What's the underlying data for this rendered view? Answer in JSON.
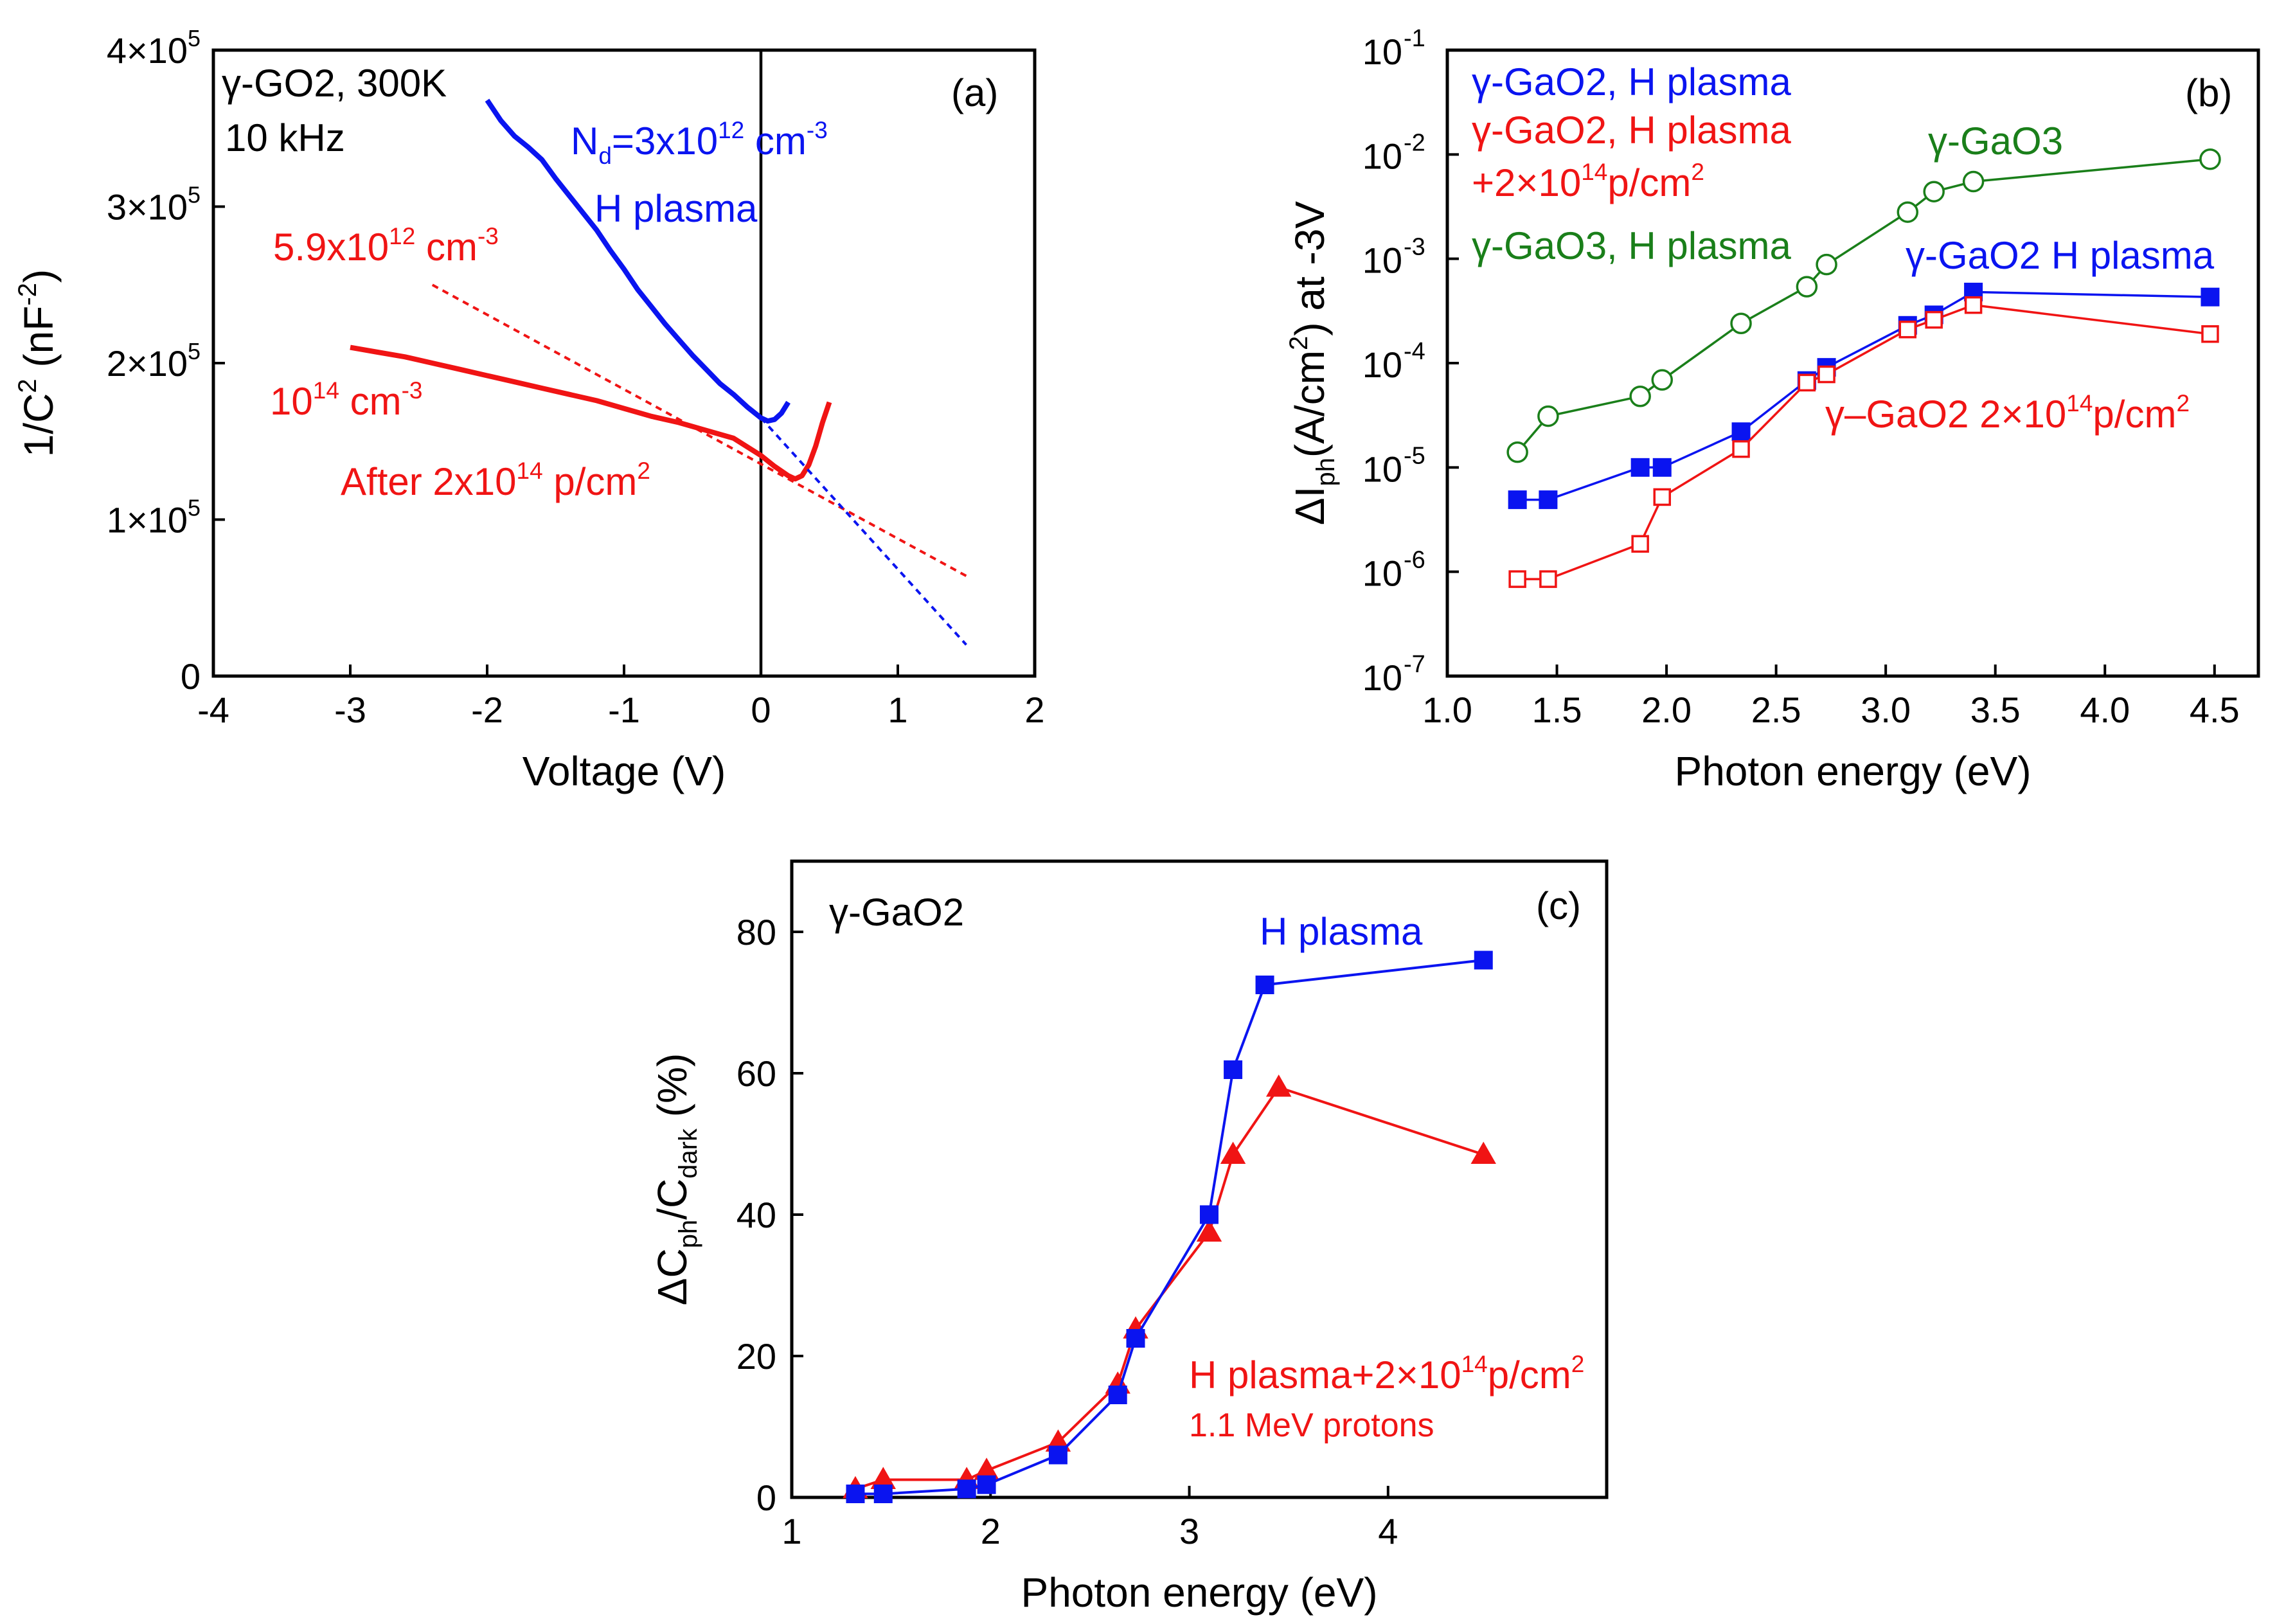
{
  "colors": {
    "blue": "#0a14f0",
    "red": "#f01414",
    "green": "#1a7f1a",
    "black": "#000000"
  },
  "chart_data": [
    {
      "panel": "(a)",
      "type": "line",
      "xlabel": "Voltage (V)",
      "ylabel_parts": [
        "1/C",
        "2",
        " (nF",
        "-2",
        ")"
      ],
      "xlim": [
        -4,
        2
      ],
      "ylim": [
        0,
        400000
      ],
      "xticks": [
        -4,
        -3,
        -2,
        -1,
        0,
        1,
        2
      ],
      "xtick_labels": [
        "-4",
        "-3",
        "-2",
        "-1",
        "0",
        "1",
        "2"
      ],
      "yticks": [
        0,
        100000,
        200000,
        300000,
        400000
      ],
      "ytick_labels": [
        {
          "base": "0",
          "exp": ""
        },
        {
          "base": "1×10",
          "exp": "5"
        },
        {
          "base": "2×10",
          "exp": "5"
        },
        {
          "base": "3×10",
          "exp": "5"
        },
        {
          "base": "4×10",
          "exp": "5"
        }
      ],
      "vline_x": 0,
      "series": [
        {
          "name": "H plasma",
          "color": "blue",
          "style": "solid",
          "x": [
            -2.0,
            -1.9,
            -1.8,
            -1.7,
            -1.6,
            -1.5,
            -1.4,
            -1.3,
            -1.2,
            -1.1,
            -1.0,
            -0.9,
            -0.8,
            -0.7,
            -0.6,
            -0.5,
            -0.4,
            -0.3,
            -0.2,
            -0.1,
            0.0,
            0.05,
            0.1,
            0.15,
            0.2
          ],
          "y": [
            368000,
            355000,
            345000,
            338000,
            330000,
            318000,
            307000,
            296000,
            285000,
            272000,
            260000,
            247000,
            236000,
            225000,
            215000,
            205000,
            196000,
            187000,
            180000,
            172000,
            165000,
            163000,
            164000,
            168000,
            175000
          ]
        },
        {
          "name": "After 2x10^14 p/cm^2",
          "color": "red",
          "style": "solid",
          "x": [
            -3.0,
            -2.8,
            -2.6,
            -2.4,
            -2.2,
            -2.0,
            -1.8,
            -1.6,
            -1.4,
            -1.2,
            -1.0,
            -0.8,
            -0.6,
            -0.4,
            -0.2,
            0.0,
            0.1,
            0.2,
            0.25,
            0.3,
            0.35,
            0.4,
            0.45,
            0.5
          ],
          "y": [
            210000,
            207000,
            204000,
            200000,
            196000,
            192000,
            188000,
            184000,
            180000,
            176000,
            171000,
            166000,
            162000,
            157000,
            152000,
            141000,
            134000,
            128000,
            126000,
            128000,
            135000,
            147000,
            162000,
            175000
          ]
        },
        {
          "name": "fit 5.9x10^12",
          "color": "red",
          "style": "dashed",
          "x": [
            -2.4,
            1.5
          ],
          "y": [
            250000,
            64000
          ]
        },
        {
          "name": "fit 3x10^12",
          "color": "blue",
          "style": "dashed",
          "x": [
            0.0,
            1.5
          ],
          "y": [
            165000,
            20000
          ]
        }
      ],
      "annotations": [
        {
          "id": "a1",
          "base": "γ-GO2, 300K",
          "sup": "",
          "tail": "",
          "color": "black"
        },
        {
          "id": "a2",
          "base": "10 kHz",
          "sup": "",
          "tail": "",
          "color": "black"
        },
        {
          "id": "a3",
          "base": "N",
          "sub": "d",
          "mid": "=3x10",
          "sup": "12",
          "tail": " cm",
          "sup2": "-3",
          "color": "blue"
        },
        {
          "id": "a4",
          "base": "H plasma",
          "color": "blue"
        },
        {
          "id": "a5",
          "base": "5.9x10",
          "sup": "12",
          "tail": " cm",
          "sup2": "-3",
          "color": "red"
        },
        {
          "id": "a6",
          "base": "10",
          "sup": "14",
          "tail": " cm",
          "sup2": "-3",
          "color": "red"
        },
        {
          "id": "a7",
          "base": "After 2x10",
          "sup": "14",
          "tail": " p/cm",
          "sup2": "2",
          "color": "red"
        }
      ]
    },
    {
      "panel": "(b)",
      "type": "scatter",
      "scale_y": "log",
      "xlabel": "Photon energy (eV)",
      "ylabel_parts": [
        "ΔI",
        "ph",
        "(A/cm",
        "2",
        ") at -3V"
      ],
      "xlim": [
        1.0,
        4.7
      ],
      "ylim_log10": [
        -7,
        -1
      ],
      "xticks": [
        1.0,
        1.5,
        2.0,
        2.5,
        3.0,
        3.5,
        4.0,
        4.5
      ],
      "xtick_labels": [
        "1.0",
        "1.5",
        "2.0",
        "2.5",
        "3.0",
        "3.5",
        "4.0",
        "4.5"
      ],
      "ytick_exps": [
        -7,
        -6,
        -5,
        -4,
        -3,
        -2,
        -1
      ],
      "ytick_labels": [
        {
          "base": "10",
          "exp": "-7"
        },
        {
          "base": "10",
          "exp": "-6"
        },
        {
          "base": "10",
          "exp": "-5"
        },
        {
          "base": "10",
          "exp": "-4"
        },
        {
          "base": "10",
          "exp": "-3"
        },
        {
          "base": "10",
          "exp": "-2"
        },
        {
          "base": "10",
          "exp": "-1"
        }
      ],
      "series": [
        {
          "name": "γ-GaO3, H plasma",
          "color": "green",
          "marker": "circle-open",
          "x": [
            1.32,
            1.46,
            1.88,
            1.98,
            2.34,
            2.64,
            2.73,
            3.1,
            3.22,
            3.4,
            4.48
          ],
          "y": [
            1.4e-05,
            3.1e-05,
            4.8e-05,
            6.9e-05,
            0.00024,
            0.00054,
            0.00088,
            0.0028,
            0.0044,
            0.0055,
            0.009
          ]
        },
        {
          "name": "γ-GaO2, H plasma",
          "color": "blue",
          "marker": "square-filled",
          "x": [
            1.32,
            1.46,
            1.88,
            1.98,
            2.34,
            2.64,
            2.73,
            3.1,
            3.22,
            3.4,
            4.48
          ],
          "y": [
            4.9e-06,
            4.9e-06,
            1e-05,
            1e-05,
            2.2e-05,
            6.8e-05,
            9.1e-05,
            0.00023,
            0.00029,
            0.00048,
            0.00043
          ]
        },
        {
          "name": "γ-GaO2, H plasma +2×10^14p/cm^2",
          "color": "red",
          "marker": "square-open",
          "x": [
            1.32,
            1.46,
            1.88,
            1.98,
            2.34,
            2.64,
            2.73,
            3.1,
            3.22,
            3.4,
            4.48
          ],
          "y": [
            8.5e-07,
            8.5e-07,
            1.85e-06,
            5.2e-06,
            1.5e-05,
            6.5e-05,
            7.8e-05,
            0.00021,
            0.00026,
            0.00036,
            0.00019
          ]
        }
      ],
      "annotations": [
        {
          "id": "b1",
          "base": "γ-GaO2, H plasma",
          "color": "blue"
        },
        {
          "id": "b2",
          "base": "γ-GaO2, H plasma",
          "color": "red"
        },
        {
          "id": "b3",
          "base": "+2×10",
          "sup": "14",
          "tail": "p/cm",
          "sup2": "2",
          "color": "red"
        },
        {
          "id": "b4",
          "base": "γ-GaO3, H plasma",
          "color": "green"
        },
        {
          "id": "b5",
          "base": "γ-GaO3",
          "color": "green"
        },
        {
          "id": "b6",
          "base": "γ-GaO2 H plasma",
          "color": "blue"
        },
        {
          "id": "b7",
          "base": "γ–GaO2 2×10",
          "sup": "14",
          "tail": "p/cm",
          "sup2": "2",
          "color": "red"
        }
      ]
    },
    {
      "panel": "(c)",
      "type": "line",
      "xlabel": "Photon energy (eV)",
      "ylabel_parts": [
        "ΔC",
        "ph",
        "/C",
        "dark",
        " (%)"
      ],
      "xlim": [
        1,
        5.1
      ],
      "ylim": [
        0,
        90
      ],
      "xticks": [
        1,
        2,
        3,
        4
      ],
      "xtick_labels": [
        "1",
        "2",
        "3",
        "4"
      ],
      "yticks": [
        0,
        20,
        40,
        60,
        80
      ],
      "ytick_labels": [
        "0",
        "20",
        "40",
        "60",
        "80"
      ],
      "series": [
        {
          "name": "H plasma",
          "color": "blue",
          "marker": "square-filled",
          "x": [
            1.32,
            1.46,
            1.88,
            1.98,
            2.34,
            2.64,
            2.73,
            3.1,
            3.22,
            3.38,
            4.48
          ],
          "y": [
            0.5,
            0.5,
            1.2,
            1.8,
            6.0,
            14.5,
            22.5,
            40.0,
            60.5,
            72.5,
            76.0
          ]
        },
        {
          "name": "H plasma+2×10^14p/cm^2 1.1 MeV protons",
          "color": "red",
          "marker": "triangle-filled",
          "x": [
            1.32,
            1.46,
            1.88,
            1.98,
            2.34,
            2.64,
            2.73,
            3.1,
            3.22,
            3.45,
            4.48
          ],
          "y": [
            1.2,
            2.5,
            2.5,
            3.8,
            7.8,
            16.0,
            23.8,
            37.5,
            48.5,
            58.0,
            48.5
          ]
        }
      ],
      "annotations": [
        {
          "id": "c1",
          "base": "γ-GaO2",
          "color": "black"
        },
        {
          "id": "c2",
          "base": "H plasma",
          "color": "blue"
        },
        {
          "id": "c3",
          "base": "H plasma+2×10",
          "sup": "14",
          "tail": "p/cm",
          "sup2": "2",
          "color": "red"
        },
        {
          "id": "c4",
          "base": "1.1 MeV protons",
          "color": "red"
        }
      ]
    }
  ]
}
